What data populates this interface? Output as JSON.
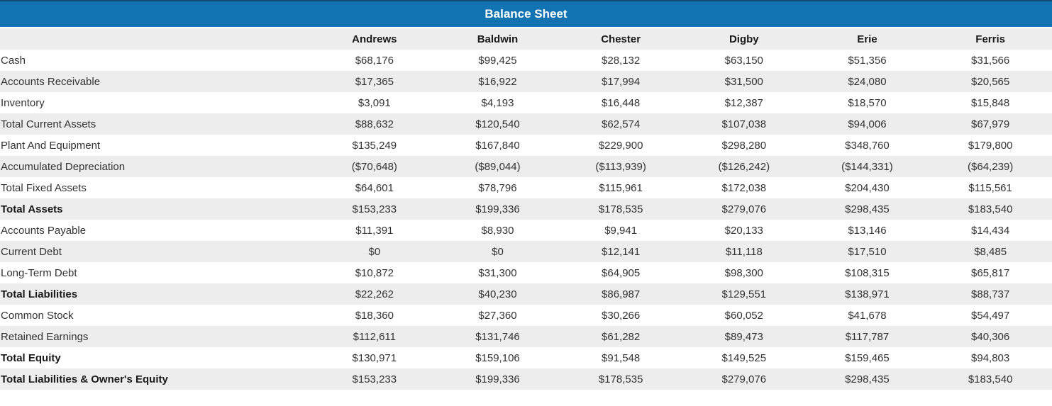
{
  "title": "Balance Sheet",
  "colors": {
    "header_blue": "#1173b2",
    "top_rule_navy": "#134a70",
    "row_stripe_gray": "#ededed"
  },
  "columns": [
    "Andrews",
    "Baldwin",
    "Chester",
    "Digby",
    "Erie",
    "Ferris"
  ],
  "rows": [
    {
      "label": "Cash",
      "bold": false,
      "values": [
        "$68,176",
        "$99,425",
        "$28,132",
        "$63,150",
        "$51,356",
        "$31,566"
      ]
    },
    {
      "label": "Accounts Receivable",
      "bold": false,
      "values": [
        "$17,365",
        "$16,922",
        "$17,994",
        "$31,500",
        "$24,080",
        "$20,565"
      ]
    },
    {
      "label": "Inventory",
      "bold": false,
      "values": [
        "$3,091",
        "$4,193",
        "$16,448",
        "$12,387",
        "$18,570",
        "$15,848"
      ]
    },
    {
      "label": "Total Current Assets",
      "bold": false,
      "values": [
        "$88,632",
        "$120,540",
        "$62,574",
        "$107,038",
        "$94,006",
        "$67,979"
      ]
    },
    {
      "label": "Plant And Equipment",
      "bold": false,
      "values": [
        "$135,249",
        "$167,840",
        "$229,900",
        "$298,280",
        "$348,760",
        "$179,800"
      ]
    },
    {
      "label": "Accumulated Depreciation",
      "bold": false,
      "values": [
        "($70,648)",
        "($89,044)",
        "($113,939)",
        "($126,242)",
        "($144,331)",
        "($64,239)"
      ]
    },
    {
      "label": "Total Fixed Assets",
      "bold": false,
      "values": [
        "$64,601",
        "$78,796",
        "$115,961",
        "$172,038",
        "$204,430",
        "$115,561"
      ]
    },
    {
      "label": "Total Assets",
      "bold": true,
      "values": [
        "$153,233",
        "$199,336",
        "$178,535",
        "$279,076",
        "$298,435",
        "$183,540"
      ]
    },
    {
      "label": "Accounts Payable",
      "bold": false,
      "values": [
        "$11,391",
        "$8,930",
        "$9,941",
        "$20,133",
        "$13,146",
        "$14,434"
      ]
    },
    {
      "label": "Current Debt",
      "bold": false,
      "values": [
        "$0",
        "$0",
        "$12,141",
        "$11,118",
        "$17,510",
        "$8,485"
      ]
    },
    {
      "label": "Long-Term Debt",
      "bold": false,
      "values": [
        "$10,872",
        "$31,300",
        "$64,905",
        "$98,300",
        "$108,315",
        "$65,817"
      ]
    },
    {
      "label": "Total Liabilities",
      "bold": true,
      "values": [
        "$22,262",
        "$40,230",
        "$86,987",
        "$129,551",
        "$138,971",
        "$88,737"
      ]
    },
    {
      "label": "Common Stock",
      "bold": false,
      "values": [
        "$18,360",
        "$27,360",
        "$30,266",
        "$60,052",
        "$41,678",
        "$54,497"
      ]
    },
    {
      "label": "Retained Earnings",
      "bold": false,
      "values": [
        "$112,611",
        "$131,746",
        "$61,282",
        "$89,473",
        "$117,787",
        "$40,306"
      ]
    },
    {
      "label": "Total Equity",
      "bold": true,
      "values": [
        "$130,971",
        "$159,106",
        "$91,548",
        "$149,525",
        "$159,465",
        "$94,803"
      ]
    },
    {
      "label": "Total Liabilities & Owner's Equity",
      "bold": true,
      "values": [
        "$153,233",
        "$199,336",
        "$178,535",
        "$279,076",
        "$298,435",
        "$183,540"
      ]
    }
  ]
}
